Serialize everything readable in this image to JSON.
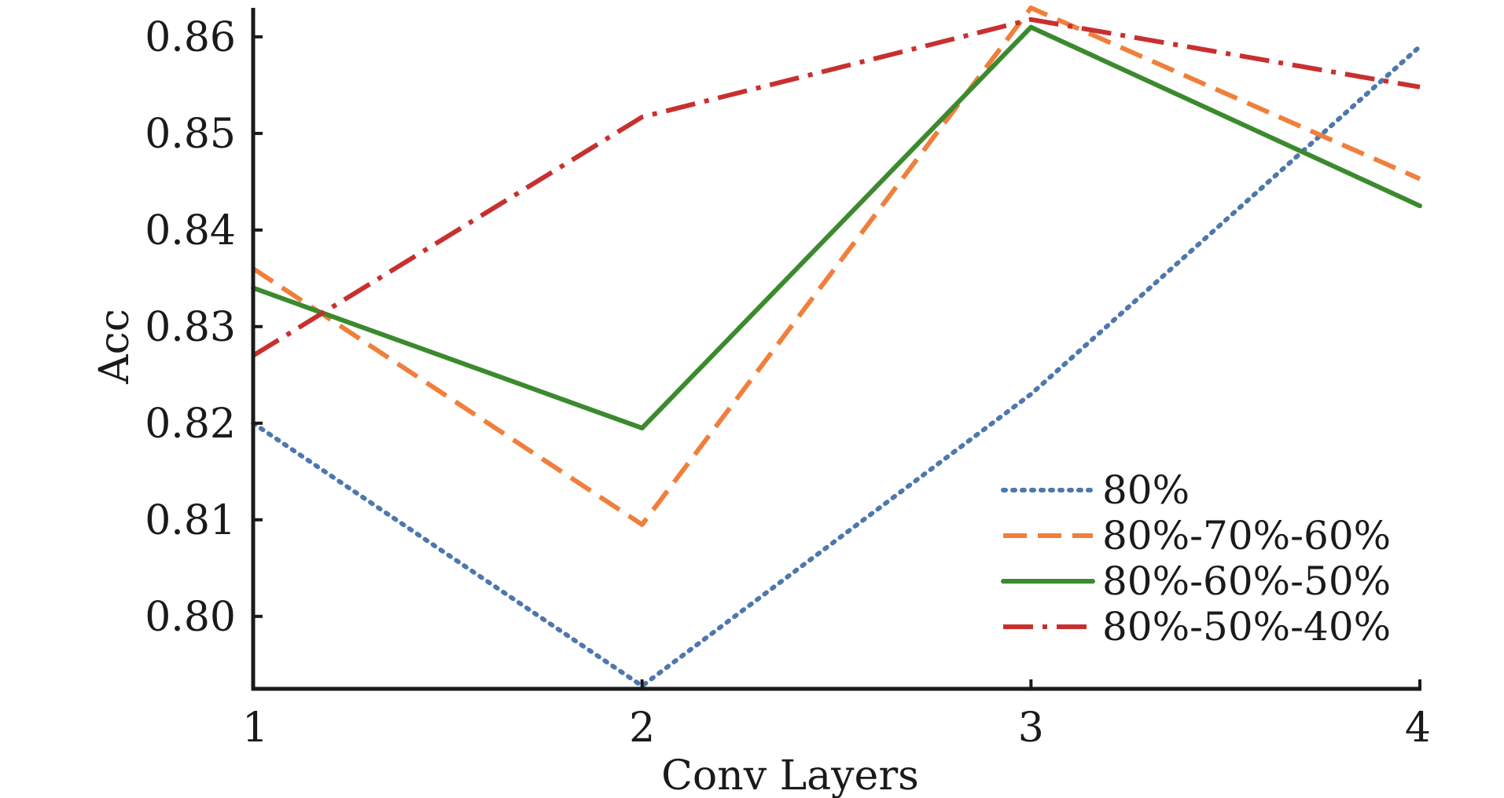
{
  "chart_data": {
    "type": "line",
    "title": "",
    "xlabel": "Conv Layers",
    "ylabel": "Acc",
    "x": [
      1,
      2,
      3,
      4
    ],
    "xlim": [
      1,
      4
    ],
    "ylim": [
      0.7925,
      0.863
    ],
    "xticks": [
      "1",
      "2",
      "3",
      "4"
    ],
    "yticks": [
      "0.80",
      "0.81",
      "0.82",
      "0.83",
      "0.84",
      "0.85",
      "0.86"
    ],
    "ytick_values": [
      0.8,
      0.81,
      0.82,
      0.83,
      0.84,
      0.85,
      0.86
    ],
    "grid": false,
    "legend_position": "bottom-right",
    "series": [
      {
        "name": "80%",
        "values": [
          0.82,
          0.7928,
          0.823,
          0.859
        ],
        "color": "#4e77ad",
        "style": "dotted"
      },
      {
        "name": "80%-70%-60%",
        "values": [
          0.836,
          0.8095,
          0.863,
          0.8453
        ],
        "color": "#f07f3c",
        "style": "dashed"
      },
      {
        "name": "80%-60%-50%",
        "values": [
          0.834,
          0.8195,
          0.861,
          0.8425
        ],
        "color": "#3b8a2e",
        "style": "solid"
      },
      {
        "name": "80%-50%-40%",
        "values": [
          0.827,
          0.8517,
          0.8618,
          0.8548
        ],
        "color": "#c8302f",
        "style": "dashdot"
      }
    ]
  }
}
